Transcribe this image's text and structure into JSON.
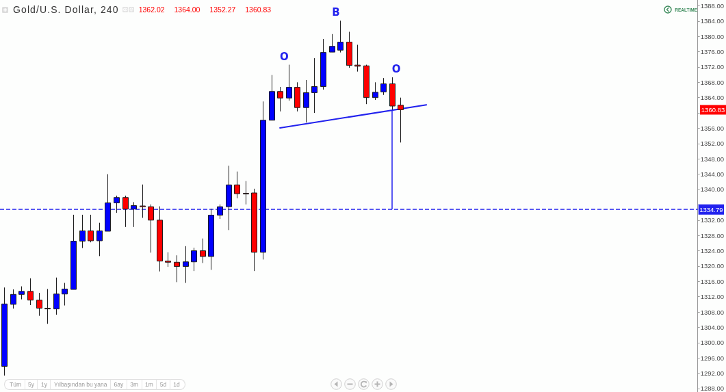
{
  "chart_data": {
    "type": "candlestick",
    "title": "Gold/U.S. Dollar, 240",
    "subtitle": "1362.02 1364.00 1352.27 1360.83",
    "categories": [
      null,
      null,
      null,
      null,
      null,
      null,
      null,
      null,
      null,
      null,
      null,
      null,
      null,
      null,
      null,
      null,
      null,
      null,
      null,
      null,
      null,
      null,
      null,
      null,
      null,
      null,
      null,
      null,
      null,
      null,
      null,
      null,
      null,
      null,
      null,
      null,
      null,
      null,
      null,
      null,
      null,
      null,
      null,
      null,
      null,
      null,
      null,
      null,
      null,
      null,
      null,
      null,
      null,
      null,
      null,
      null,
      null,
      null,
      null,
      null,
      null,
      null,
      null,
      null,
      null,
      null,
      null,
      null,
      null,
      null,
      null,
      null,
      null,
      null,
      null,
      null,
      null,
      null,
      null,
      null,
      null
    ],
    "ohlc": [
      [
        1293.8,
        1314.4,
        1291.4,
        1310.1
      ],
      [
        1310.0,
        1313.9,
        1308.9,
        1312.6
      ],
      [
        1312.6,
        1314.7,
        1311.3,
        1313.4
      ],
      [
        1313.4,
        1316.8,
        1309.8,
        1311.1
      ],
      [
        1311.1,
        1313.0,
        1307.0,
        1309.0
      ],
      [
        1309.0,
        1314.0,
        1304.9,
        1308.8
      ],
      [
        1308.8,
        1317.0,
        1307.3,
        1312.7
      ],
      [
        1312.7,
        1315.6,
        1309.7,
        1314.0
      ],
      [
        1313.9,
        1333.4,
        1313.9,
        1326.5
      ],
      [
        1326.5,
        1333.4,
        1324.7,
        1329.2
      ],
      [
        1329.2,
        1333.4,
        1326.2,
        1326.6
      ],
      [
        1326.6,
        1331.3,
        1322.6,
        1329.2
      ],
      [
        1329.1,
        1344.0,
        1329.1,
        1336.5
      ],
      [
        1336.5,
        1338.4,
        1333.9,
        1337.9
      ],
      [
        1337.9,
        1338.4,
        1330.2,
        1334.9
      ],
      [
        1334.9,
        1336.7,
        1330.2,
        1335.8
      ],
      [
        1335.7,
        1341.3,
        1332.6,
        1335.5
      ],
      [
        1335.5,
        1336.1,
        1323.5,
        1332.0
      ],
      [
        1332.0,
        1335.6,
        1318.6,
        1321.3
      ],
      [
        1321.3,
        1323.6,
        1319.8,
        1321.0
      ],
      [
        1321.0,
        1322.8,
        1315.8,
        1319.9
      ],
      [
        1319.9,
        1325.2,
        1315.6,
        1321.1
      ],
      [
        1321.1,
        1324.8,
        1318.7,
        1324.0
      ],
      [
        1324.0,
        1327.2,
        1320.8,
        1322.5
      ],
      [
        1322.5,
        1335.0,
        1319.0,
        1333.3
      ],
      [
        1333.3,
        1336.1,
        1332.3,
        1335.5
      ],
      [
        1335.5,
        1346.2,
        1329.4,
        1341.2
      ],
      [
        1341.2,
        1344.7,
        1337.7,
        1338.9
      ],
      [
        1339.0,
        1342.2,
        1336.1,
        1338.9
      ],
      [
        1339.1,
        1340.2,
        1318.7,
        1323.6
      ],
      [
        1323.6,
        1363.0,
        1321.7,
        1358.1
      ],
      [
        1358.1,
        1369.9,
        1358.1,
        1365.6
      ],
      [
        1365.6,
        1366.8,
        1360.4,
        1363.9
      ],
      [
        1363.9,
        1372.6,
        1363.2,
        1366.7
      ],
      [
        1366.7,
        1368.0,
        1360.4,
        1361.4
      ],
      [
        1361.4,
        1368.6,
        1357.5,
        1365.3
      ],
      [
        1365.3,
        1374.3,
        1360.0,
        1366.9
      ],
      [
        1366.9,
        1379.3,
        1366.1,
        1375.8
      ],
      [
        1375.9,
        1380.6,
        1375.9,
        1377.4
      ],
      [
        1376.4,
        1384.1,
        1375.8,
        1378.5
      ],
      [
        1378.5,
        1381.2,
        1371.8,
        1372.4
      ],
      [
        1372.5,
        1377.8,
        1370.8,
        1372.2
      ],
      [
        1372.3,
        1372.6,
        1362.3,
        1364.0
      ],
      [
        1364.0,
        1368.0,
        1363.4,
        1365.4
      ],
      [
        1365.5,
        1369.1,
        1364.7,
        1367.6
      ],
      [
        1367.6,
        1369.3,
        1360.9,
        1361.8
      ],
      [
        1362.02,
        1364.0,
        1352.27,
        1360.83
      ],
      null,
      null,
      null,
      null,
      null,
      null,
      null,
      null,
      null,
      null,
      null,
      null,
      null,
      null,
      null,
      null,
      null,
      null,
      null,
      null,
      null,
      null,
      null,
      null,
      null,
      null,
      null,
      null,
      null,
      null,
      null,
      null,
      null,
      null
    ],
    "colors": [
      "#0000ff",
      "#0000ff",
      "#0000ff",
      "#ff0000",
      "#ff0000",
      "#ff0000",
      "#0000ff",
      "#0000ff",
      "#0000ff",
      "#0000ff",
      "#ff0000",
      "#0000ff",
      "#0000ff",
      "#0000ff",
      "#ff0000",
      "#0000ff",
      "#ff0000",
      "#ff0000",
      "#ff0000",
      "#ff0000",
      "#ff0000",
      "#0000ff",
      "#0000ff",
      "#ff0000",
      "#0000ff",
      "#0000ff",
      "#0000ff",
      "#ff0000",
      "#ff0000",
      "#ff0000",
      "#0000ff",
      "#0000ff",
      "#ff0000",
      "#0000ff",
      "#ff0000",
      "#0000ff",
      "#0000ff",
      "#0000ff",
      "#0000ff",
      "#0000ff",
      "#ff0000",
      "#ff0000",
      "#ff0000",
      "#0000ff",
      "#0000ff",
      "#ff0000",
      "#ff0000",
      null,
      null,
      null,
      null,
      null,
      null,
      null,
      null,
      null,
      null,
      null,
      null,
      null,
      null,
      null,
      null,
      null,
      null,
      null,
      null,
      null,
      null,
      null,
      null,
      null,
      null,
      null,
      null,
      null,
      null,
      null,
      null,
      null,
      null
    ],
    "series": [
      {
        "type": "line",
        "color": "#2222ee",
        "line_style": "solid",
        "values": [
          null,
          null,
          null,
          null,
          null,
          null,
          null,
          null,
          null,
          null,
          null,
          null,
          null,
          null,
          null,
          null,
          null,
          null,
          null,
          null,
          null,
          null,
          null,
          null,
          null,
          null,
          null,
          null,
          null,
          null,
          null,
          null,
          1356.1,
          null,
          null,
          null,
          null,
          null,
          null,
          null,
          null,
          null,
          null,
          null,
          null,
          null,
          null,
          null,
          null,
          1362.1,
          null,
          null,
          null,
          null,
          null,
          null,
          null,
          null,
          null,
          null,
          null,
          null,
          null,
          null,
          null,
          null,
          null,
          null,
          null,
          null,
          null,
          null,
          null,
          null,
          null,
          null,
          null,
          null,
          null,
          null,
          null
        ]
      }
    ],
    "ref_lines": [
      {
        "axis": "y",
        "value": 1334.79,
        "label": "1334.79",
        "color": "#2222ee",
        "line_style": "dashed"
      }
    ],
    "ylim": [
      1287.1,
      1389.5
    ],
    "yticks": [
      {
        "value": 1288,
        "label": "1288.00"
      },
      {
        "value": 1292,
        "label": "1292.00"
      },
      {
        "value": 1296,
        "label": "1296.00"
      },
      {
        "value": 1300,
        "label": "1300.00"
      },
      {
        "value": 1304,
        "label": "1304.00"
      },
      {
        "value": 1308,
        "label": "1308.00"
      },
      {
        "value": 1312,
        "label": "1312.00"
      },
      {
        "value": 1316,
        "label": "1316.00"
      },
      {
        "value": 1320,
        "label": "1320.00"
      },
      {
        "value": 1324,
        "label": "1324.00"
      },
      {
        "value": 1328,
        "label": "1328.00"
      },
      {
        "value": 1332,
        "label": "1332.00"
      },
      {
        "value": 1336,
        "label": null
      },
      {
        "value": 1340,
        "label": "1340.00"
      },
      {
        "value": 1344,
        "label": "1344.00"
      },
      {
        "value": 1348,
        "label": "1348.00"
      },
      {
        "value": 1352,
        "label": "1352.00"
      },
      {
        "value": 1356,
        "label": "1356.00"
      },
      {
        "value": 1360,
        "label": null
      },
      {
        "value": 1364,
        "label": "1364.00"
      },
      {
        "value": 1368,
        "label": "1368.00"
      },
      {
        "value": 1372,
        "label": "1372.00"
      },
      {
        "value": 1376,
        "label": "1376.00"
      },
      {
        "value": 1380,
        "label": "1380.00"
      },
      {
        "value": 1384,
        "label": "1384.00"
      },
      {
        "value": 1388,
        "label": "1388.00"
      }
    ],
    "annotations": [
      "O",
      "B",
      "O",
      "1360.83",
      "REALTIME",
      "Tüm",
      "5y",
      "1y",
      "Yılbaşından bu yana",
      "6ay",
      "3m",
      "1m",
      "5d",
      "1d"
    ],
    "tick_labels": "y",
    "marker": "none"
  }
}
